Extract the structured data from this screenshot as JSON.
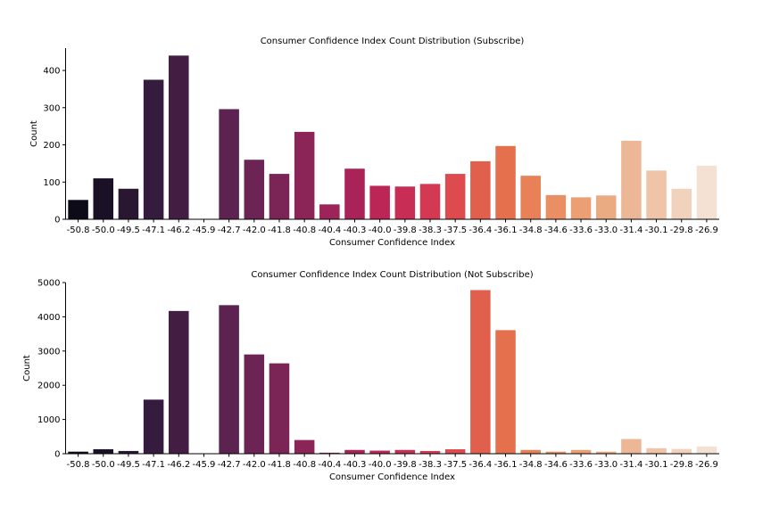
{
  "chart_data": [
    {
      "type": "bar",
      "title": "Consumer Confidence Index Count Distribution (Subscribe)",
      "xlabel": "Consumer Confidence Index",
      "ylabel": "Count",
      "ylim": [
        0,
        460
      ],
      "yticks": [
        0,
        100,
        200,
        300,
        400
      ],
      "grid": false,
      "categories": [
        "-50.8",
        "-50.0",
        "-49.5",
        "-47.1",
        "-46.2",
        "-45.9",
        "-42.7",
        "-42.0",
        "-41.8",
        "-40.8",
        "-40.4",
        "-40.3",
        "-40.0",
        "-39.8",
        "-38.3",
        "-37.5",
        "-36.4",
        "-36.1",
        "-34.8",
        "-34.6",
        "-33.6",
        "-33.0",
        "-31.4",
        "-30.1",
        "-29.8",
        "-26.9"
      ],
      "values": [
        52,
        110,
        82,
        375,
        440,
        0,
        296,
        160,
        122,
        235,
        40,
        136,
        90,
        88,
        95,
        122,
        156,
        197,
        117,
        65,
        59,
        64,
        211,
        131,
        82,
        144
      ]
    },
    {
      "type": "bar",
      "title": "Consumer Confidence Index Count Distribution (Not Subscribe)",
      "xlabel": "Consumer Confidence Index",
      "ylabel": "Count",
      "ylim": [
        0,
        5000
      ],
      "yticks": [
        0,
        1000,
        2000,
        3000,
        4000,
        5000
      ],
      "grid": false,
      "categories": [
        "-50.8",
        "-50.0",
        "-49.5",
        "-47.1",
        "-46.2",
        "-45.9",
        "-42.7",
        "-42.0",
        "-41.8",
        "-40.8",
        "-40.4",
        "-40.3",
        "-40.0",
        "-39.8",
        "-38.3",
        "-37.5",
        "-36.4",
        "-36.1",
        "-34.8",
        "-34.6",
        "-33.6",
        "-33.0",
        "-31.4",
        "-30.1",
        "-29.8",
        "-26.9"
      ],
      "values": [
        60,
        130,
        80,
        1580,
        4170,
        0,
        4340,
        2900,
        2640,
        400,
        30,
        110,
        90,
        110,
        80,
        130,
        4780,
        3610,
        110,
        60,
        110,
        60,
        430,
        160,
        140,
        210
      ]
    }
  ],
  "colors": [
    "#0e0b19",
    "#1a1126",
    "#291732",
    "#351c3e",
    "#441e42",
    "#4b1f49",
    "#5d2350",
    "#6b2453",
    "#7b2456",
    "#8b2558",
    "#9c2459",
    "#aa2358",
    "#bb2657",
    "#c82d56",
    "#d43953",
    "#de4b4f",
    "#e15f4d",
    "#e5704e",
    "#e88058",
    "#e98f63",
    "#eb9f73",
    "#eaaa82",
    "#ecb797",
    "#efc4a8",
    "#f1d2bd",
    "#f5e1d3"
  ]
}
